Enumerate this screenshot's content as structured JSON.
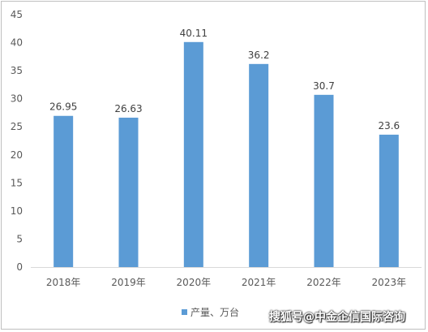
{
  "chart_data": {
    "type": "bar",
    "categories": [
      "2018年",
      "2019年",
      "2020年",
      "2021年",
      "2022年",
      "2023年"
    ],
    "series": [
      {
        "name": "产量、万台",
        "values": [
          26.95,
          26.63,
          40.11,
          36.2,
          30.7,
          23.6
        ],
        "color": "#5b9bd5"
      }
    ],
    "data_labels": [
      "26.95",
      "26.63",
      "40.11",
      "36.2",
      "30.7",
      "23.6"
    ],
    "yticks": [
      "0",
      "5",
      "10",
      "15",
      "20",
      "25",
      "30",
      "35",
      "40",
      "45"
    ],
    "ylim": [
      0,
      45
    ],
    "grid": false,
    "legend": "bottom"
  },
  "watermark": "搜狐号@中金企信国际咨询"
}
